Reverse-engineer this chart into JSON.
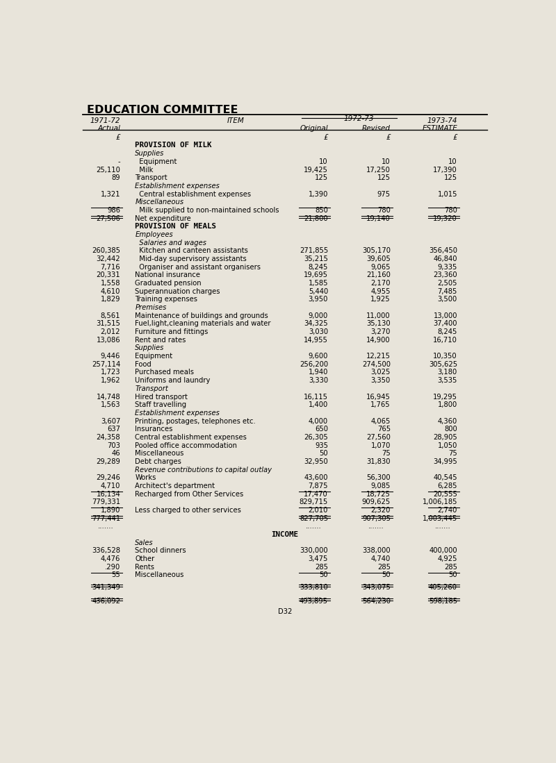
{
  "title": "EDUCATION COMMITTEE",
  "bg_color": "#e8e4da",
  "rows": [
    {
      "type": "currency_header",
      "actual": "£",
      "item": "",
      "original": "£",
      "revised": "£",
      "estimate": "£"
    },
    {
      "type": "section",
      "item": "PROVISION OF MILK"
    },
    {
      "type": "subsection",
      "item": "Supplies"
    },
    {
      "type": "data",
      "actual": "-",
      "item": "  Equipment",
      "original": "10",
      "revised": "10",
      "estimate": "10"
    },
    {
      "type": "data",
      "actual": "25,110",
      "item": "  Milk",
      "original": "19,425",
      "revised": "17,250",
      "estimate": "17,390"
    },
    {
      "type": "data",
      "actual": "89",
      "item": "Transport",
      "original": "125",
      "revised": "125",
      "estimate": "125"
    },
    {
      "type": "subsection",
      "item": "Establishment expenses"
    },
    {
      "type": "data",
      "actual": "1,321",
      "item": "  Central establishment expenses",
      "original": "1,390",
      "revised": "975",
      "estimate": "1,015"
    },
    {
      "type": "subsection",
      "item": "Miscellaneous"
    },
    {
      "type": "data_underline",
      "actual": "986",
      "item": "  Milk supplied to non-maintained schools",
      "original": "850",
      "revised": "780",
      "estimate": "780"
    },
    {
      "type": "data_double_underline",
      "actual": "27,506",
      "item": "Net expenditure",
      "original": "21,800",
      "revised": "19,140",
      "estimate": "19,320"
    },
    {
      "type": "section",
      "item": "PROVISION OF MEALS"
    },
    {
      "type": "subsection",
      "item": "Employees"
    },
    {
      "type": "subsection",
      "item": "  Salaries and wages"
    },
    {
      "type": "data",
      "actual": "260,385",
      "item": "  Kitchen and canteen assistants",
      "original": "271,855",
      "revised": "305,170",
      "estimate": "356,450"
    },
    {
      "type": "data",
      "actual": "32,442",
      "item": "  Mid-day supervisory assistants",
      "original": "35,215",
      "revised": "39,605",
      "estimate": "46,840"
    },
    {
      "type": "data",
      "actual": "7,716",
      "item": "  Organiser and assistant organisers",
      "original": "8,245",
      "revised": "9,065",
      "estimate": "9,335"
    },
    {
      "type": "data",
      "actual": "20,331",
      "item": "National insurance",
      "original": "19,695",
      "revised": "21,160",
      "estimate": "23,360"
    },
    {
      "type": "data",
      "actual": "1,558",
      "item": "Graduated pension",
      "original": "1,585",
      "revised": "2,170",
      "estimate": "2,505"
    },
    {
      "type": "data",
      "actual": "4,610",
      "item": "Superannuation charges",
      "original": "5,440",
      "revised": "4,955",
      "estimate": "7,485"
    },
    {
      "type": "data",
      "actual": "1,829",
      "item": "Training expenses",
      "original": "3,950",
      "revised": "1,925",
      "estimate": "3,500"
    },
    {
      "type": "subsection",
      "item": "Premises"
    },
    {
      "type": "data",
      "actual": "8,561",
      "item": "Maintenance of buildings and grounds",
      "original": "9,000",
      "revised": "11,000",
      "estimate": "13,000"
    },
    {
      "type": "data",
      "actual": "31,515",
      "item": "Fuel,light,cleaning materials and water",
      "original": "34,325",
      "revised": "35,130",
      "estimate": "37,400"
    },
    {
      "type": "data",
      "actual": "2,012",
      "item": "Furniture and fittings",
      "original": "3,030",
      "revised": "3,270",
      "estimate": "8,245"
    },
    {
      "type": "data",
      "actual": "13,086",
      "item": "Rent and rates",
      "original": "14,955",
      "revised": "14,900",
      "estimate": "16,710"
    },
    {
      "type": "subsection",
      "item": "Supplies"
    },
    {
      "type": "data",
      "actual": "9,446",
      "item": "Equipment",
      "original": "9,600",
      "revised": "12,215",
      "estimate": "10,350"
    },
    {
      "type": "data",
      "actual": "257,114",
      "item": "Food",
      "original": "256,200",
      "revised": "274,500",
      "estimate": "305,625"
    },
    {
      "type": "data",
      "actual": "1,723",
      "item": "Purchased meals",
      "original": "1,940",
      "revised": "3,025",
      "estimate": "3,180"
    },
    {
      "type": "data",
      "actual": "1,962",
      "item": "Uniforms and laundry",
      "original": "3,330",
      "revised": "3,350",
      "estimate": "3,535"
    },
    {
      "type": "subsection",
      "item": "Transport"
    },
    {
      "type": "data",
      "actual": "14,748",
      "item": "Hired transport",
      "original": "16,115",
      "revised": "16,945",
      "estimate": "19,295"
    },
    {
      "type": "data",
      "actual": "1,563",
      "item": "Staff travelling",
      "original": "1,400",
      "revised": "1,765",
      "estimate": "1,800"
    },
    {
      "type": "subsection",
      "item": "Establishment expenses"
    },
    {
      "type": "data",
      "actual": "3,607",
      "item": "Printing, postages, telephones etc.",
      "original": "4,000",
      "revised": "4,065",
      "estimate": "4,360"
    },
    {
      "type": "data",
      "actual": "637",
      "item": "Insurances",
      "original": "650",
      "revised": "765",
      "estimate": "800"
    },
    {
      "type": "data",
      "actual": "24,358",
      "item": "Central establishment expenses",
      "original": "26,305",
      "revised": "27,560",
      "estimate": "28,905"
    },
    {
      "type": "data",
      "actual": "703",
      "item": "Pooled office accommodation",
      "original": "935",
      "revised": "1,070",
      "estimate": "1,050"
    },
    {
      "type": "data",
      "actual": "46",
      "item": "Miscellaneous",
      "original": "50",
      "revised": "75",
      "estimate": "75"
    },
    {
      "type": "data",
      "actual": "29,289",
      "item": "Debt charges",
      "original": "32,950",
      "revised": "31,830",
      "estimate": "34,995"
    },
    {
      "type": "subsection",
      "item": "Revenue contributions to capital outlay"
    },
    {
      "type": "data",
      "actual": "29,246",
      "item": "Works",
      "original": "43,600",
      "revised": "56,300",
      "estimate": "40,545"
    },
    {
      "type": "data",
      "actual": "4,710",
      "item": "Architect's department",
      "original": "7,875",
      "revised": "9,085",
      "estimate": "6,285"
    },
    {
      "type": "data_underline",
      "actual": "16,134",
      "item": "Recharged from Other Services",
      "original": "17,470",
      "revised": "18,725",
      "estimate": "20,555"
    },
    {
      "type": "data",
      "actual": "779,331",
      "item": "",
      "original": "829,715",
      "revised": "909,625",
      "estimate": "1,006,185"
    },
    {
      "type": "data_underline",
      "actual": "1,890",
      "item": "Less charged to other services",
      "original": "2,010",
      "revised": "2,320",
      "estimate": "2,740"
    },
    {
      "type": "data_double_underline",
      "actual": "777,441",
      "item": "",
      "original": "827,705",
      "revised": "907,305",
      "estimate": "1,003,445"
    },
    {
      "type": "dots",
      "item": ""
    },
    {
      "type": "section_center",
      "item": "INCOME"
    },
    {
      "type": "subsection",
      "item": "Sales"
    },
    {
      "type": "data",
      "actual": "336,528",
      "item": "School dinners",
      "original": "330,000",
      "revised": "338,000",
      "estimate": "400,000"
    },
    {
      "type": "data",
      "actual": "4,476",
      "item": "Other",
      "original": "3,475",
      "revised": "4,740",
      "estimate": "4,925"
    },
    {
      "type": "data",
      "actual": ".290",
      "item": "Rents",
      "original": "285",
      "revised": "285",
      "estimate": "285"
    },
    {
      "type": "data_underline",
      "actual": "55",
      "item": "Miscellaneous",
      "original": "50",
      "revised": "50",
      "estimate": "50"
    },
    {
      "type": "blank"
    },
    {
      "type": "data_double_underline",
      "actual": "341,349",
      "item": "",
      "original": "333,810",
      "revised": "343,075",
      "estimate": "405,260"
    },
    {
      "type": "dots2",
      "item": ""
    },
    {
      "type": "data_double_underline",
      "actual": "436,092",
      "item": "",
      "original": "493,895",
      "revised": "564,230",
      "estimate": "598,185"
    },
    {
      "type": "footer",
      "item": "D32"
    }
  ]
}
